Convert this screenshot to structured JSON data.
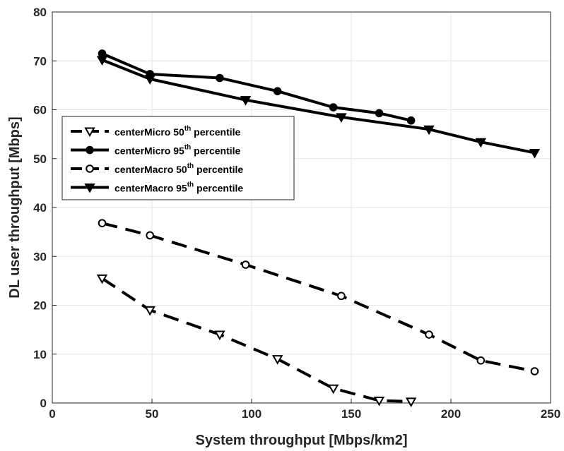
{
  "chart_data": {
    "type": "line",
    "xlabel": "System throughput [Mbps/km2]",
    "ylabel": "DL user throughput [Mbps]",
    "xlim": [
      0,
      250
    ],
    "ylim": [
      0,
      80
    ],
    "xticks": [
      0,
      50,
      100,
      150,
      200,
      250
    ],
    "yticks": [
      0,
      10,
      20,
      30,
      40,
      50,
      60,
      70,
      80
    ],
    "grid": true,
    "legend_position": "left",
    "series": [
      {
        "name_main": "centerMicro 50",
        "name_sup": "th",
        "name_tail": " percentile",
        "style": "dashed",
        "marker": "triangle-down-open",
        "x": [
          25,
          49,
          84,
          113,
          141,
          164,
          180
        ],
        "y": [
          25.5,
          19,
          14,
          9,
          3,
          0.5,
          0.3
        ]
      },
      {
        "name_main": "centerMicro 95",
        "name_sup": "th",
        "name_tail": " percentile",
        "style": "solid",
        "marker": "circle-filled",
        "x": [
          25,
          49,
          84,
          113,
          141,
          164,
          180
        ],
        "y": [
          71.5,
          67.3,
          66.5,
          63.8,
          60.5,
          59.3,
          57.8
        ]
      },
      {
        "name_main": "centerMacro 50",
        "name_sup": "th",
        "name_tail": " percentile",
        "style": "dashed",
        "marker": "circle-open",
        "x": [
          25,
          49,
          97,
          145,
          189,
          215,
          242
        ],
        "y": [
          36.8,
          34.3,
          28.3,
          21.9,
          14.0,
          8.7,
          6.5
        ]
      },
      {
        "name_main": "centerMacro 95",
        "name_sup": "th",
        "name_tail": " percentile",
        "style": "solid",
        "marker": "triangle-down-filled",
        "x": [
          25,
          49,
          97,
          145,
          189,
          215,
          242
        ],
        "y": [
          70.2,
          66.3,
          62.0,
          58.5,
          56.0,
          53.4,
          51.2
        ]
      }
    ]
  }
}
